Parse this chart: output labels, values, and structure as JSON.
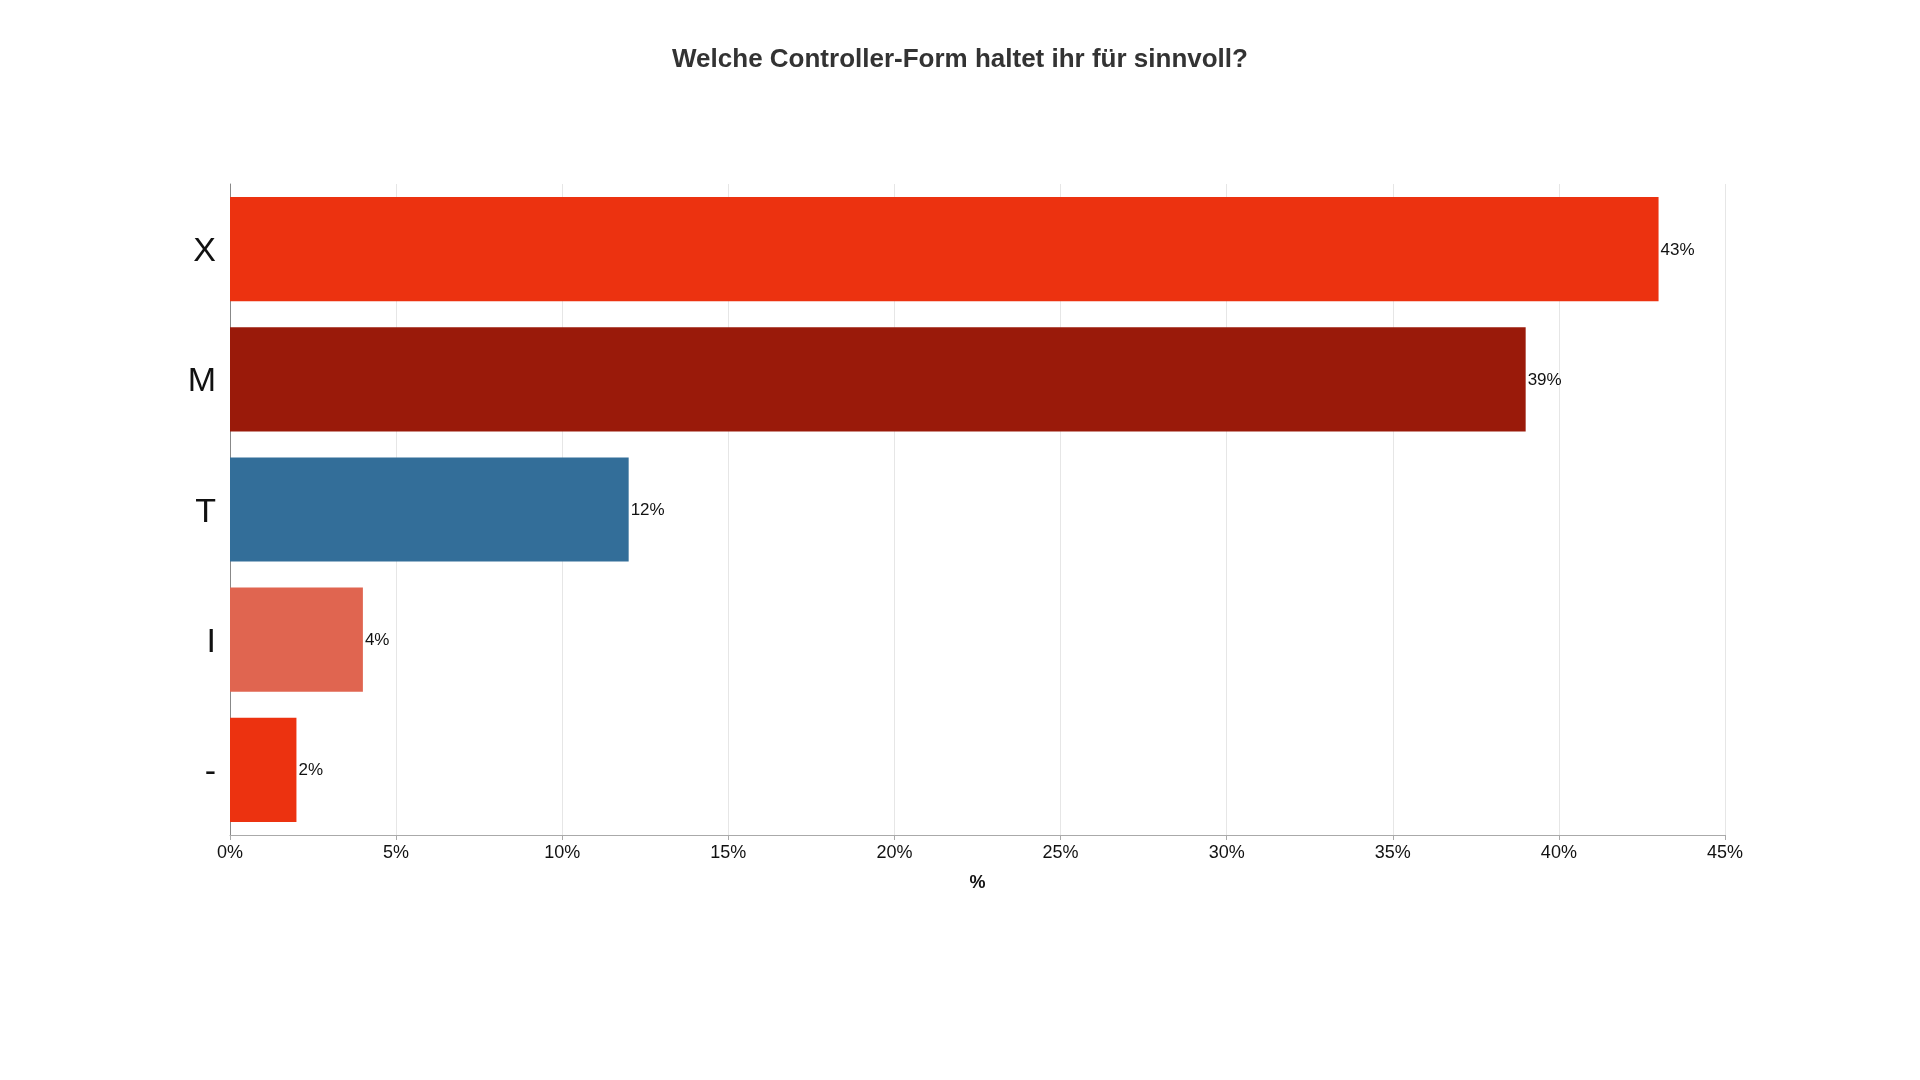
{
  "chart_data": {
    "type": "bar",
    "orientation": "horizontal",
    "title": "Welche Controller-Form haltet ihr für sinnvoll?",
    "xlabel": "%",
    "categories": [
      "X",
      "M",
      "T",
      "I",
      "-"
    ],
    "values": [
      43,
      39,
      12,
      4,
      2
    ],
    "colors": [
      "#ec3210",
      "#9a1a0a",
      "#336e99",
      "#e06550",
      "#ec3210"
    ],
    "value_labels": [
      "43%",
      "39%",
      "12%",
      "4%",
      "2%"
    ],
    "xlim": [
      0,
      45
    ],
    "xticks": [
      {
        "value": 0,
        "label": "0%"
      },
      {
        "value": 5,
        "label": "5%"
      },
      {
        "value": 10,
        "label": "10%"
      },
      {
        "value": 15,
        "label": "15%"
      },
      {
        "value": 20,
        "label": "20%"
      },
      {
        "value": 25,
        "label": "25%"
      },
      {
        "value": 30,
        "label": "30%"
      },
      {
        "value": 35,
        "label": "35%"
      },
      {
        "value": 40,
        "label": "40%"
      },
      {
        "value": 45,
        "label": "45%"
      }
    ],
    "grid": "x"
  }
}
